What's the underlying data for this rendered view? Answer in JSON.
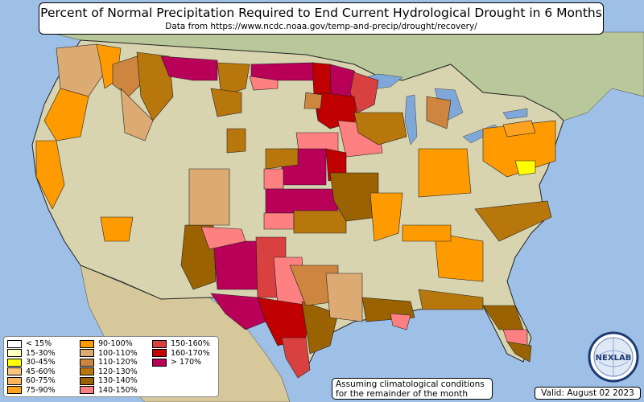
{
  "header": {
    "title": "Percent of Normal Precipitation Required to End Current Hydrological Drought in 6 Months",
    "subtitle": "Data from https://www.ncdc.noaa.gov/temp-and-precip/drought/recovery/"
  },
  "legend": [
    {
      "label": "< 15%",
      "color": "#ffffff"
    },
    {
      "label": "15-30%",
      "color": "#ffffc0"
    },
    {
      "label": "30-45%",
      "color": "#ffff00"
    },
    {
      "label": "45-60%",
      "color": "#fcc57a"
    },
    {
      "label": "60-75%",
      "color": "#fbb35c"
    },
    {
      "label": "75-90%",
      "color": "#ffa21f"
    },
    {
      "label": "90-100%",
      "color": "#ff9a00"
    },
    {
      "label": "100-110%",
      "color": "#dcaa73"
    },
    {
      "label": "110-120%",
      "color": "#cd853f"
    },
    {
      "label": "120-130%",
      "color": "#b7770c"
    },
    {
      "label": "130-140%",
      "color": "#9a6200"
    },
    {
      "label": "140-150%",
      "color": "#ff8080"
    },
    {
      "label": "150-160%",
      "color": "#d94040"
    },
    {
      "label": "160-170%",
      "color": "#c00000"
    },
    {
      "label": "> 170%",
      "color": "#b80058"
    }
  ],
  "note": {
    "line1": "Assuming climatological conditions",
    "line2": "for the remainder of the month"
  },
  "valid": "Valid: August 02 2023",
  "logo_text": "NEXLAB",
  "colors": {
    "ocean": "#9ec0e6",
    "land": "#d8d4b0",
    "canada": "#b9c89a",
    "mexico": "#d6c89a",
    "lakes": "#7fa8d8"
  }
}
